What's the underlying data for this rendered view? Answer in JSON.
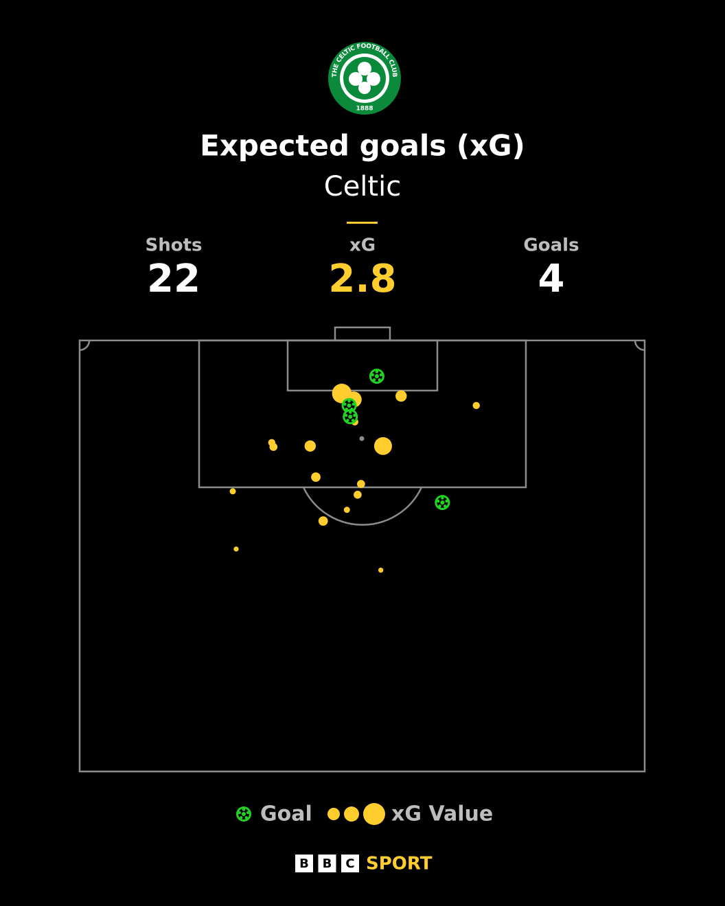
{
  "crest": {
    "text": "THE CELTIC FOOTBALL CLUB",
    "year": "1888"
  },
  "header": {
    "title": "Expected goals (xG)",
    "team": "Celtic"
  },
  "stats": [
    {
      "label": "Shots",
      "value": 22
    },
    {
      "label": "xG",
      "value": 2.8
    },
    {
      "label": "Goals",
      "value": 4
    }
  ],
  "chart_data": {
    "type": "scatter",
    "xlim": [
      0,
      100
    ],
    "ylim": [
      0,
      100
    ],
    "series": [
      {
        "name": "Goal",
        "color": "#22d322",
        "x": [
          52.6,
          47.7,
          47.9,
          64.2
        ],
        "y": [
          8.3,
          15.1,
          17.7,
          37.6
        ]
      },
      {
        "name": "xG Value",
        "color": "#ffcd2e",
        "x": [
          46.4,
          48.5,
          56.9,
          70.2,
          48.7,
          34.0,
          34.3,
          40.8,
          53.7,
          41.8,
          49.8,
          49.2,
          27.1,
          47.3,
          43.1,
          27.7,
          53.3
        ],
        "y": [
          12.3,
          13.7,
          12.9,
          15.1,
          18.9,
          23.7,
          24.7,
          24.5,
          24.5,
          31.7,
          33.3,
          35.8,
          35.0,
          39.3,
          41.9,
          48.4,
          53.3
        ],
        "xg": [
          0.3,
          0.2,
          0.1,
          0.04,
          0.04,
          0.04,
          0.05,
          0.1,
          0.25,
          0.07,
          0.05,
          0.05,
          0.03,
          0.03,
          0.07,
          0.02,
          0.02
        ]
      }
    ]
  },
  "footer": {
    "bbc": [
      "B",
      "B",
      "C"
    ],
    "brand": "SPORT"
  }
}
